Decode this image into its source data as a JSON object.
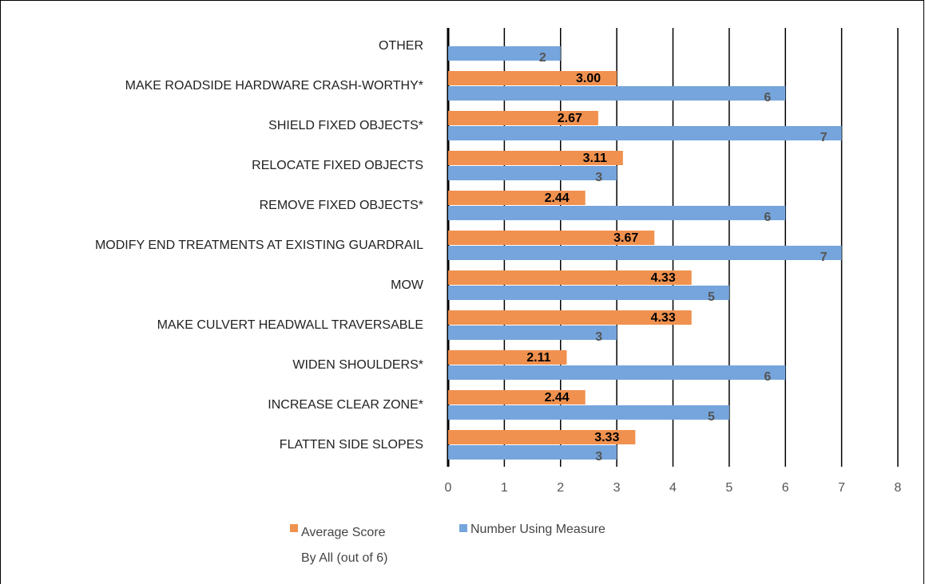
{
  "chart_data": {
    "type": "bar",
    "orientation": "horizontal",
    "categories": [
      "OTHER",
      "MAKE ROADSIDE HARDWARE CRASH-WORTHY*",
      "SHIELD FIXED OBJECTS*",
      "RELOCATE FIXED OBJECTS",
      "REMOVE FIXED OBJECTS*",
      "MODIFY END TREATMENTS AT EXISTING GUARDRAIL",
      "MOW",
      "MAKE CULVERT HEADWALL TRAVERSABLE",
      "WIDEN SHOULDERS*",
      "INCREASE CLEAR ZONE*",
      "FLATTEN SIDE SLOPES"
    ],
    "series": [
      {
        "name": "Average Score By All (out of 6)",
        "color": "#f0914f",
        "values": [
          null,
          3.0,
          2.67,
          3.11,
          2.44,
          3.67,
          4.33,
          4.33,
          2.11,
          2.44,
          3.33
        ],
        "value_labels": [
          null,
          "3.00",
          "2.67",
          "3.11",
          "2.44",
          "3.67",
          "4.33",
          "4.33",
          "2.11",
          "2.44",
          "3.33"
        ]
      },
      {
        "name": "Number Using Measure",
        "color": "#75a5dc",
        "values": [
          2,
          6,
          7,
          3,
          6,
          7,
          5,
          3,
          6,
          5,
          3
        ]
      }
    ],
    "xlim": [
      0,
      8
    ],
    "xticks": [
      0,
      1,
      2,
      3,
      4,
      5,
      6,
      7,
      8
    ],
    "grid": true
  }
}
